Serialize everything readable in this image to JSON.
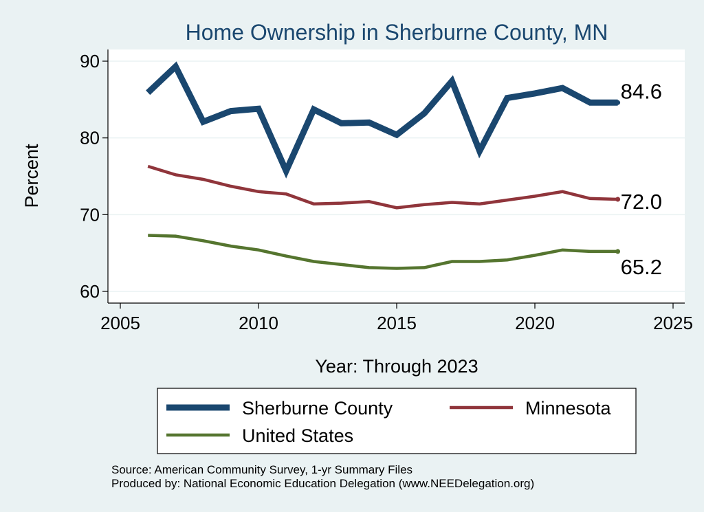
{
  "chart_data": {
    "type": "line",
    "title": "Home Ownership in Sherburne County, MN",
    "xlabel": "Year: Through 2023",
    "ylabel": "Percent",
    "xlim": [
      2005,
      2025
    ],
    "ylim": [
      60,
      90
    ],
    "xticks": [
      2005,
      2010,
      2015,
      2020,
      2025
    ],
    "yticks": [
      60,
      70,
      80,
      90
    ],
    "grid": true,
    "legend_position": "bottom",
    "x": [
      2006,
      2007,
      2008,
      2009,
      2010,
      2011,
      2012,
      2013,
      2014,
      2015,
      2016,
      2017,
      2018,
      2019,
      2020,
      2021,
      2022,
      2023
    ],
    "series": [
      {
        "name": "Sherburne County",
        "color": "#1a476f",
        "values": [
          85.9,
          89.3,
          82.1,
          83.5,
          83.8,
          75.7,
          83.7,
          81.9,
          82.0,
          80.4,
          83.2,
          87.4,
          78.3,
          85.2,
          85.8,
          86.5,
          84.6,
          84.6
        ],
        "end_label": "84.6"
      },
      {
        "name": "Minnesota",
        "color": "#90353b",
        "values": [
          76.3,
          75.2,
          74.6,
          73.7,
          73.0,
          72.7,
          71.4,
          71.5,
          71.7,
          70.9,
          71.3,
          71.6,
          71.4,
          71.9,
          72.4,
          73.0,
          72.1,
          72.0
        ],
        "end_label": "72.0"
      },
      {
        "name": "United States",
        "color": "#55752f",
        "values": [
          67.3,
          67.2,
          66.6,
          65.9,
          65.4,
          64.6,
          63.9,
          63.5,
          63.1,
          63.0,
          63.1,
          63.9,
          63.9,
          64.1,
          64.7,
          65.4,
          65.2,
          65.2
        ],
        "end_label": "65.2"
      }
    ]
  },
  "notes": {
    "source": "Source: American Community Survey, 1-yr Summary Files",
    "produced_by": "Produced by: National Economic Education Delegation (www.NEEDelegation.org)"
  }
}
